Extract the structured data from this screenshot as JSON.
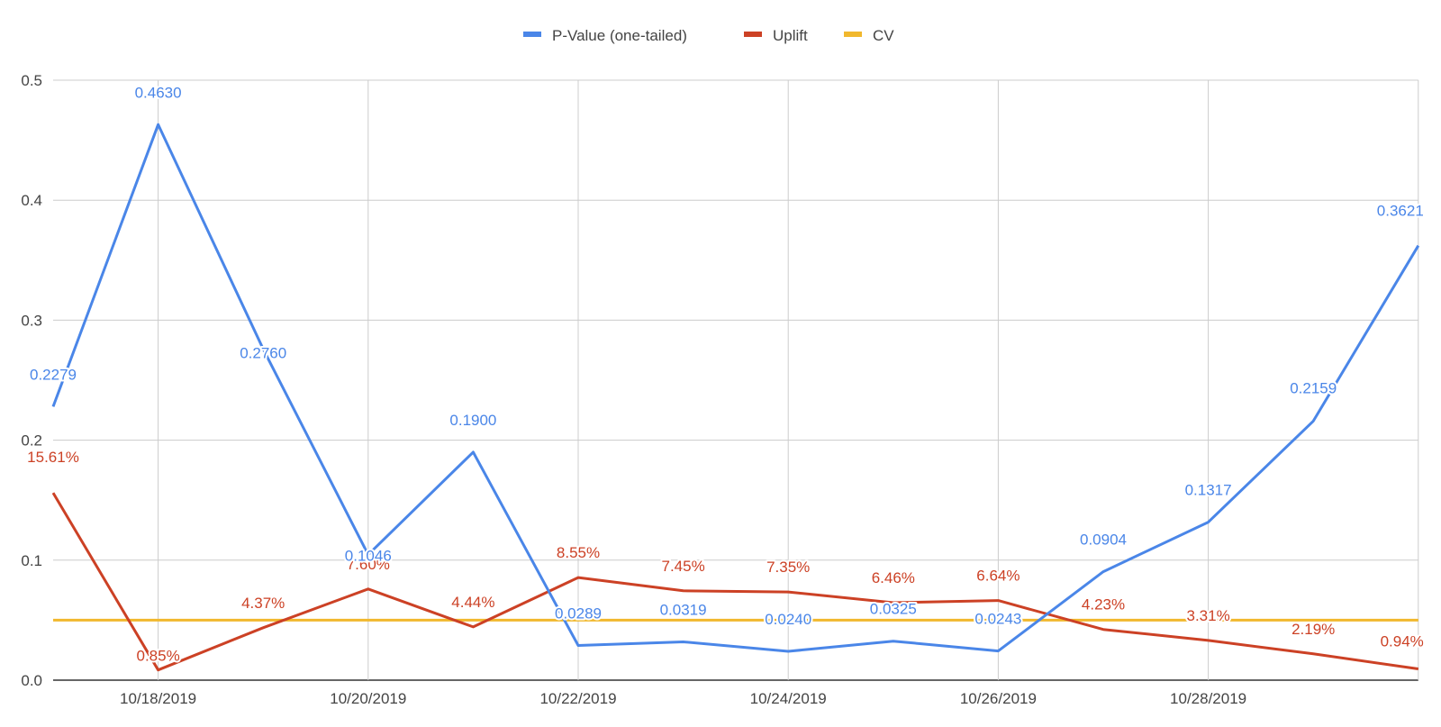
{
  "chart_data": {
    "type": "line",
    "x": [
      "10/17/2019",
      "10/18/2019",
      "10/19/2019",
      "10/20/2019",
      "10/21/2019",
      "10/22/2019",
      "10/23/2019",
      "10/24/2019",
      "10/25/2019",
      "10/26/2019",
      "10/27/2019",
      "10/28/2019",
      "10/29/2019",
      "10/30/2019"
    ],
    "x_tick_labels": [
      "10/18/2019",
      "10/20/2019",
      "10/22/2019",
      "10/24/2019",
      "10/26/2019",
      "10/28/2019"
    ],
    "y_ticks": [
      "0.0",
      "0.1",
      "0.2",
      "0.3",
      "0.4",
      "0.5"
    ],
    "ylim": [
      0,
      0.5
    ],
    "grid": true,
    "legend_position": "top",
    "series": [
      {
        "name": "P-Value (one-tailed)",
        "color": "#4a86e8",
        "values": [
          0.2279,
          0.463,
          0.276,
          0.1046,
          0.19,
          0.0289,
          0.0319,
          0.024,
          0.0325,
          0.0243,
          0.0904,
          0.1317,
          0.2159,
          0.3621
        ],
        "labels": [
          "0.2279",
          "0.4630",
          "0.2760",
          "0.1046",
          "0.1900",
          "0.0289",
          "0.0319",
          "0.0240",
          "0.0325",
          "0.0243",
          "0.0904",
          "0.1317",
          "0.2159",
          "0.3621"
        ]
      },
      {
        "name": "Uplift",
        "color": "#cc4125",
        "values": [
          0.1561,
          0.0085,
          0.0437,
          0.076,
          0.0444,
          0.0855,
          0.0745,
          0.0735,
          0.0646,
          0.0664,
          0.0423,
          0.0331,
          0.0219,
          0.0094
        ],
        "labels": [
          "15.61%",
          "0.85%",
          "4.37%",
          "7.60%",
          "4.44%",
          "8.55%",
          "7.45%",
          "7.35%",
          "6.46%",
          "6.64%",
          "4.23%",
          "3.31%",
          "2.19%",
          "0.94%"
        ]
      },
      {
        "name": "CV",
        "color": "#f1b82d",
        "values": [
          0.05,
          0.05,
          0.05,
          0.05,
          0.05,
          0.05,
          0.05,
          0.05,
          0.05,
          0.05,
          0.05,
          0.05,
          0.05,
          0.05
        ]
      }
    ]
  }
}
